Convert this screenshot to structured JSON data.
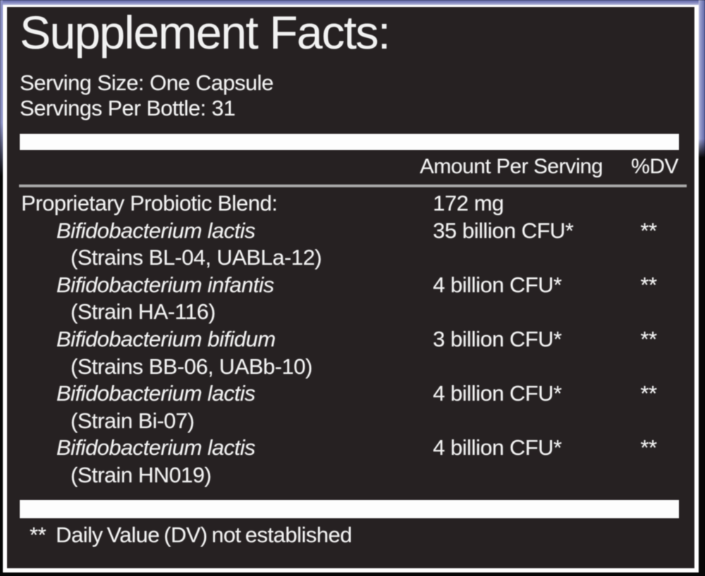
{
  "label": {
    "title": "Supplement Facts:",
    "serving_size": "Serving Size: One Capsule",
    "servings_per_bottle": "Servings Per Bottle: 31",
    "columns": {
      "amount": "Amount Per Serving",
      "dv": "%DV"
    },
    "rows": [
      {
        "name": "Proprietary Probiotic Blend:",
        "italic": false,
        "indent": 0,
        "amount": "172 mg",
        "dv": ""
      },
      {
        "name": "Bifidobacterium lactis",
        "italic": true,
        "indent": 1,
        "amount": "35 billion CFU*",
        "dv": "**"
      },
      {
        "name": "(Strains BL-04, UABLa-12)",
        "italic": false,
        "indent": 2,
        "amount": "",
        "dv": ""
      },
      {
        "name": "Bifidobacterium infantis",
        "italic": true,
        "indent": 1,
        "amount": "4 billion CFU*",
        "dv": "**"
      },
      {
        "name": "(Strain HA-116)",
        "italic": false,
        "indent": 2,
        "amount": "",
        "dv": ""
      },
      {
        "name": "Bifidobacterium bifidum",
        "italic": true,
        "indent": 1,
        "amount": "3 billion CFU*",
        "dv": "**"
      },
      {
        "name": "(Strains BB-06, UABb-10)",
        "italic": false,
        "indent": 2,
        "amount": "",
        "dv": ""
      },
      {
        "name": "Bifidobacterium lactis",
        "italic": true,
        "indent": 1,
        "amount": "4 billion CFU*",
        "dv": "**"
      },
      {
        "name": "(Strain Bi-07)",
        "italic": false,
        "indent": 2,
        "amount": "",
        "dv": ""
      },
      {
        "name": "Bifidobacterium lactis",
        "italic": true,
        "indent": 1,
        "amount": "4 billion CFU*",
        "dv": "**"
      },
      {
        "name": "(Strain HN019)",
        "italic": false,
        "indent": 2,
        "amount": "",
        "dv": ""
      }
    ],
    "footnote_marks": "**",
    "footnote_text": "Daily Value (DV) not established",
    "colors": {
      "panel_bg": "#262122",
      "outer_bg": "#070707",
      "text": "#f2f2f2",
      "border": "#ffffff",
      "separator_bar": "#fdfdfd",
      "header_divider": "#a8a8a8",
      "accent_strip": "#8b90c4"
    }
  }
}
